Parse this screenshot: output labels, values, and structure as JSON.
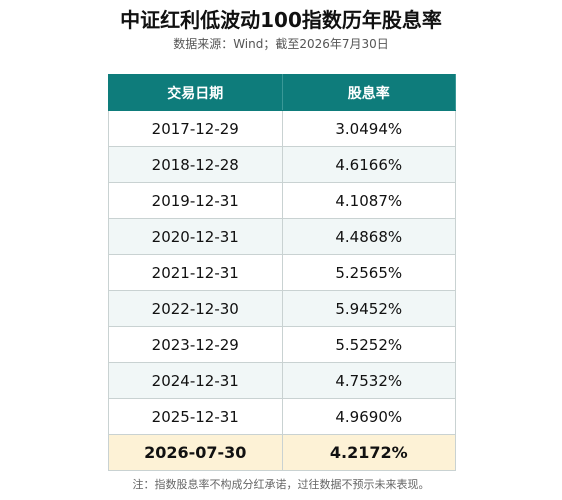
{
  "header": {
    "title": "中证红利低波动100指数历年股息率",
    "subtitle": "数据来源：Wind；截至2026年7月30日"
  },
  "table": {
    "columns": [
      "交易日期",
      "股息率"
    ],
    "rows": [
      [
        "2017-12-29",
        "3.0494%"
      ],
      [
        "2018-12-28",
        "4.6166%"
      ],
      [
        "2019-12-31",
        "4.1087%"
      ],
      [
        "2020-12-31",
        "4.4868%"
      ],
      [
        "2021-12-31",
        "5.2565%"
      ],
      [
        "2022-12-30",
        "5.9452%"
      ],
      [
        "2023-12-29",
        "5.5252%"
      ],
      [
        "2024-12-31",
        "4.7532%"
      ],
      [
        "2025-12-31",
        "4.9690%"
      ],
      [
        "2026-07-30",
        "4.2172%"
      ]
    ]
  },
  "footer": {
    "note": "注：指数股息率不构成分红承诺，过往数据不预示未来表现。"
  }
}
